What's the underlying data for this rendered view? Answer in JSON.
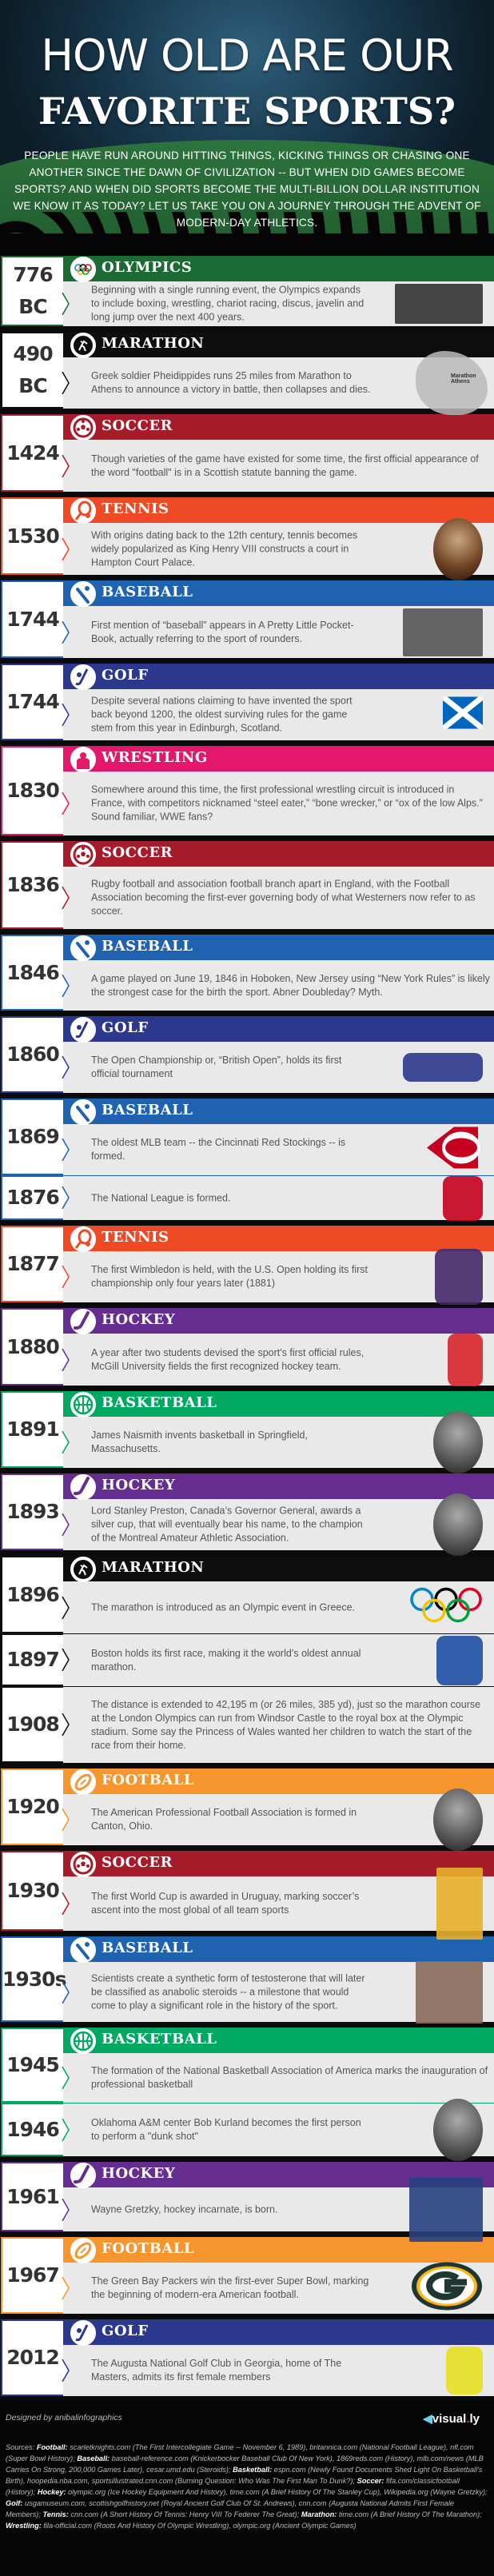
{
  "header": {
    "title_line1": "HOW OLD ARE OUR",
    "title_line2": "FAVORITE SPORTS?",
    "intro": "People have run around hitting things, kicking things or chasing one another since the dawn of civilization -- but when did games become sports? And when did sports become the multi-billion dollar institution we know it as today? Let us take you on a journey through the advent of modern-day athletics."
  },
  "colors": {
    "olympics": "#1c6b35",
    "marathon": "#0e0e0e",
    "soccer": "#a61c2a",
    "tennis": "#ee4a26",
    "baseball": "#1f62b0",
    "golf": "#2c388e",
    "wrestling": "#e3176c",
    "basketball": "#00a862",
    "hockey": "#662d91",
    "football": "#f7962e",
    "body_bg": "#e9e9e9",
    "text": "#555555"
  },
  "entries": [
    {
      "sport": "OLYMPICS",
      "key": "olympics",
      "icon": "olympic-rings-icon",
      "rows": [
        {
          "year": "776 BC",
          "text": "Beginning with a single running event, the Olympics expands to include boxing, wrestling, chariot racing, discus, javelin and long jump over the next 400 years.",
          "image": "ancient-athletes-silhouettes"
        }
      ]
    },
    {
      "sport": "MARATHON",
      "key": "marathon",
      "icon": "runners-icon",
      "rows": [
        {
          "year": "490 BC",
          "text": "Greek soldier Pheidippides runs 25 miles from Marathon to Athens to announce a victory in battle, then collapses and dies.",
          "image": "greece-map",
          "map_labels": [
            "Marathon",
            "Athens"
          ]
        }
      ]
    },
    {
      "sport": "SOCCER",
      "key": "soccer",
      "icon": "soccer-ball-icon",
      "rows": [
        {
          "year": "1424",
          "text": "Though varieties of the game have existed for some time, the first official appearance of the word \"football\" is in a Scottish statute banning the game.",
          "image": ""
        }
      ]
    },
    {
      "sport": "TENNIS",
      "key": "tennis",
      "icon": "tennis-racket-icon",
      "rows": [
        {
          "year": "1530",
          "text": "With origins dating back to the 12th century, tennis becomes widely popularized as King Henry VIII constructs a court in Hampton Court Palace.",
          "image": "henry-viii-portrait"
        }
      ]
    },
    {
      "sport": "BASEBALL",
      "key": "baseball",
      "icon": "baseball-bat-icon",
      "rows": [
        {
          "year": "1744",
          "text": "First mention of “baseball” appears in A Pretty Little Pocket-Book, actually referring to the sport of rounders.",
          "image": "rounders-players-silhouettes"
        }
      ]
    },
    {
      "sport": "GOLF",
      "key": "golf",
      "icon": "golf-club-icon",
      "rows": [
        {
          "year": "1744",
          "text": "Despite several nations claiming to have invented the sport back beyond 1200, the oldest surviving rules for the game stem from this year in Edinburgh, Scotland.",
          "image": "scotland-flag"
        }
      ]
    },
    {
      "sport": "WRESTLING",
      "key": "wrestling",
      "icon": "wrestler-icon",
      "rows": [
        {
          "year": "1830",
          "text": "Somewhere around this time, the first professional wrestling circuit is introduced in France, with competitors nicknamed “steel eater,” “bone wrecker,” or “ox of the low Alps.” Sound familiar, WWE fans?",
          "image": ""
        }
      ]
    },
    {
      "sport": "SOCCER",
      "key": "soccer",
      "icon": "soccer-ball-icon",
      "rows": [
        {
          "year": "1836",
          "text": "Rugby football and association football branch apart in England, with the Football Association becoming the first-ever governing body of what Westerners now refer to as soccer.",
          "image": ""
        }
      ]
    },
    {
      "sport": "BASEBALL",
      "key": "baseball",
      "icon": "baseball-bat-icon",
      "rows": [
        {
          "year": "1846",
          "text": "A game played on June 19, 1846 in Hoboken, New Jersey using “New York Rules” is likely the strongest case for the birth the sport. Abner Doubleday? Myth.",
          "image": ""
        }
      ]
    },
    {
      "sport": "GOLF",
      "key": "golf",
      "icon": "golf-club-icon",
      "rows": [
        {
          "year": "1860",
          "text": "The Open Championship or, “British Open”, holds its first official tournament",
          "image": "the-open-championship-logo",
          "logo_text": "THE OPEN CHAMPIONSHIP"
        }
      ]
    },
    {
      "sport": "BASEBALL",
      "key": "baseball",
      "icon": "baseball-bat-icon",
      "rows": [
        {
          "year": "1869",
          "text": "The oldest MLB team -- the Cincinnati Red Stockings -- is formed.",
          "image": "cincinnati-reds-logo",
          "logo_text": "REDS"
        },
        {
          "year": "1876",
          "text": "The National League is formed.",
          "image": "national-league-logo"
        }
      ]
    },
    {
      "sport": "TENNIS",
      "key": "tennis",
      "icon": "tennis-racket-icon",
      "rows": [
        {
          "year": "1877",
          "text": "The first Wimbledon is held, with the U.S. Open holding its first championship only four years later (1881)",
          "image": "wimbledon-logo"
        }
      ]
    },
    {
      "sport": "HOCKEY",
      "key": "hockey",
      "icon": "hockey-stick-icon",
      "rows": [
        {
          "year": "1880",
          "text": "A year after two students devised the sport's first official rules, McGill University fields the first recognized hockey team.",
          "image": "mcgill-crest"
        }
      ]
    },
    {
      "sport": "BASKETBALL",
      "key": "basketball",
      "icon": "basketball-icon",
      "rows": [
        {
          "year": "1891",
          "text": "James Naismith invents basketball in Springfield, Massachusetts.",
          "image": "james-naismith-portrait"
        }
      ]
    },
    {
      "sport": "HOCKEY",
      "key": "hockey",
      "icon": "hockey-stick-icon",
      "rows": [
        {
          "year": "1893",
          "text": "Lord Stanley Preston, Canada’s Governor General, awards a silver cup, that will eventually bear his name, to the champion of the Montreal Amateur Athletic Association.",
          "image": "lord-stanley-portrait"
        }
      ]
    },
    {
      "sport": "MARATHON",
      "key": "marathon",
      "icon": "runners-icon",
      "rows": [
        {
          "year": "1896",
          "text": "The marathon is introduced as an Olympic event in Greece.",
          "image": "olympic-rings"
        },
        {
          "year": "1897",
          "text": "Boston holds its first race, making it the world’s oldest annual marathon.",
          "image": "boston-marathon-logo"
        },
        {
          "year": "1908",
          "text": "The distance is extended to 42,195 m (or 26 miles, 385 yd), just so the marathon course at the London Olympics can run from Windsor Castle to the royal box at the Olympic stadium. Some say the Princess of Wales wanted her children to watch the start of the race from their home.",
          "image": ""
        }
      ]
    },
    {
      "sport": "FOOTBALL",
      "key": "football",
      "icon": "football-icon",
      "rows": [
        {
          "year": "1920",
          "text": "The American Professional Football Association is formed in Canton, Ohio.",
          "image": "vintage-football-photo"
        }
      ]
    },
    {
      "sport": "SOCCER",
      "key": "soccer",
      "icon": "soccer-ball-icon",
      "rows": [
        {
          "year": "1930",
          "text": "The first World Cup is awarded in Uruguay, marking soccer’s ascent into the most global of all team sports",
          "image": "world-cup-1930-poster"
        }
      ]
    },
    {
      "sport": "BASEBALL",
      "key": "baseball",
      "icon": "baseball-bat-icon",
      "rows": [
        {
          "year": "1930s",
          "text": "Scientists create a synthetic form of testosterone that will later be classified as anabolic steroids -- a milestone that would come to play a significant role in the history of the sport.",
          "image": "baseball-players-photo"
        }
      ]
    },
    {
      "sport": "BASKETBALL",
      "key": "basketball",
      "icon": "basketball-icon",
      "rows": [
        {
          "year": "1945",
          "text": "The formation of the National Basketball Association of America marks the inauguration of professional basketball",
          "image": ""
        },
        {
          "year": "1946",
          "text": "Oklahoma A&M center Bob Kurland becomes the first person to perform a \"dunk shot\"",
          "image": "bob-kurland-portrait"
        }
      ]
    },
    {
      "sport": "HOCKEY",
      "key": "hockey",
      "icon": "hockey-stick-icon",
      "rows": [
        {
          "year": "1961",
          "text": "Wayne Gretzky, hockey incarnate, is born.",
          "image": "wayne-gretzky-photo"
        }
      ]
    },
    {
      "sport": "FOOTBALL",
      "key": "football",
      "icon": "football-icon",
      "rows": [
        {
          "year": "1967",
          "text": "The Green Bay Packers win the first-ever Super Bowl, marking the beginning of modern-era American football.",
          "image": "green-bay-packers-logo"
        }
      ]
    },
    {
      "sport": "GOLF",
      "key": "golf",
      "icon": "golf-club-icon",
      "rows": [
        {
          "year": "2012",
          "text": "The Augusta National Golf Club in Georgia, home of The Masters, admits its first female members",
          "image": "augusta-national-member-badge",
          "logo_text": "MEMBER"
        }
      ]
    }
  ],
  "footer": {
    "designed_by": "Designed by anibalinfographics",
    "brand": "visual",
    "brand_dot": ".",
    "brand_end": "ly",
    "sources_prefix": "Sources:",
    "sources": [
      {
        "label": "Football:",
        "text": "scarletknights.com (The First Intercollegiate Game -- November 6, 1989), britannica.com (National Football League), nfl.com (Super Bowl History);"
      },
      {
        "label": "Baseball:",
        "text": "baseball-reference.com (Knickerbocker Baseball Club Of New York), 1869reds.com (History), mlb.com/news (MLB Carries On Strong, 200,000 Games Later), cesar.umd.edu (Steroids);"
      },
      {
        "label": "Basketball:",
        "text": "espn.com (Newly Found Documents Shed Light On Basketball's Birth), hoopedia.nba.com, sportsillustrated.cnn.com (Burning Question: Who Was The First Man To Dunk?);"
      },
      {
        "label": "Soccer:",
        "text": "fifa.com/classicfootball (History);"
      },
      {
        "label": "Hockey:",
        "text": "olympic.org (Ice Hockey Equipment And History), time.com (A Brief History Of The Stanley Cup), Wikipedia.org (Wayne Gretzky);"
      },
      {
        "label": "Golf:",
        "text": "usgamuseum.com, scottishgolfhistory.net (Royal Ancient Golf Club Of St. Andrews), cnn.com (Augusta National Admits First Female Members);"
      },
      {
        "label": "Tennis:",
        "text": "cnn.com (A Short History Of Tennis: Henry VIII To Federer The Great);"
      },
      {
        "label": "Marathon:",
        "text": "time.com (A Brief History Of The Marathon);"
      },
      {
        "label": "Wrestling:",
        "text": "fila-official.com (Roots And History Of Olympic Wrestling), olympic.org (Ancient Olympic Games)"
      }
    ]
  }
}
